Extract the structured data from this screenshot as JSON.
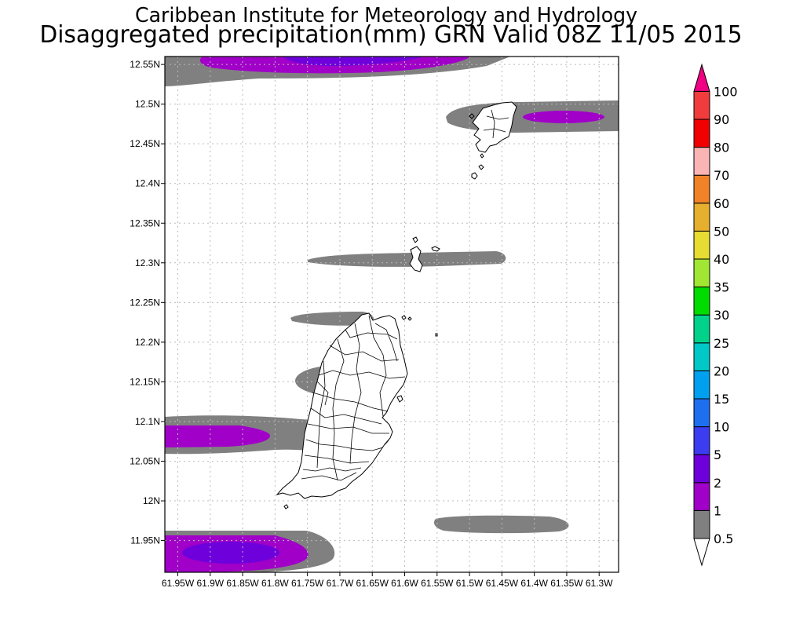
{
  "header": {
    "title": "Caribbean Institute for Meteorology and Hydrology",
    "subtitle": "Disaggregated precipitation(mm) GRN Valid 08Z 11/05 2015"
  },
  "map": {
    "lon_range": [
      -61.97,
      -61.27
    ],
    "lat_range": [
      11.91,
      12.56
    ],
    "lat_ticks": [
      "12.55N",
      "12.5N",
      "12.45N",
      "12.4N",
      "12.35N",
      "12.3N",
      "12.25N",
      "12.2N",
      "12.15N",
      "12.1N",
      "12.05N",
      "12N",
      "11.95N"
    ],
    "lon_ticks": [
      "61.95W",
      "61.9W",
      "61.85W",
      "61.8W",
      "61.75W",
      "61.7W",
      "61.65W",
      "61.6W",
      "61.55W",
      "61.5W",
      "61.45W",
      "61.4W",
      "61.35W",
      "61.3W"
    ],
    "grid": true,
    "frame_color": "#000000",
    "grid_color": "#bbbbbb"
  },
  "legend": {
    "levels": [
      {
        "label": "0.5",
        "color": "#ffffff"
      },
      {
        "label": "1",
        "color": "#808080"
      },
      {
        "label": "2",
        "color": "#a000c8"
      },
      {
        "label": "5",
        "color": "#6e00dc"
      },
      {
        "label": "10",
        "color": "#3c3cf0"
      },
      {
        "label": "15",
        "color": "#1e6ef0"
      },
      {
        "label": "20",
        "color": "#00a0f0"
      },
      {
        "label": "25",
        "color": "#00c8c8"
      },
      {
        "label": "30",
        "color": "#00d28c"
      },
      {
        "label": "35",
        "color": "#00dc00"
      },
      {
        "label": "40",
        "color": "#a0e632"
      },
      {
        "label": "50",
        "color": "#e6dc32"
      },
      {
        "label": "60",
        "color": "#e6af2d"
      },
      {
        "label": "70",
        "color": "#f08228"
      },
      {
        "label": "80",
        "color": "#fab4b4"
      },
      {
        "label": "90",
        "color": "#f00000"
      },
      {
        "label": "100",
        "color": "#f03c3c"
      }
    ],
    "top_color": "#f00082"
  }
}
